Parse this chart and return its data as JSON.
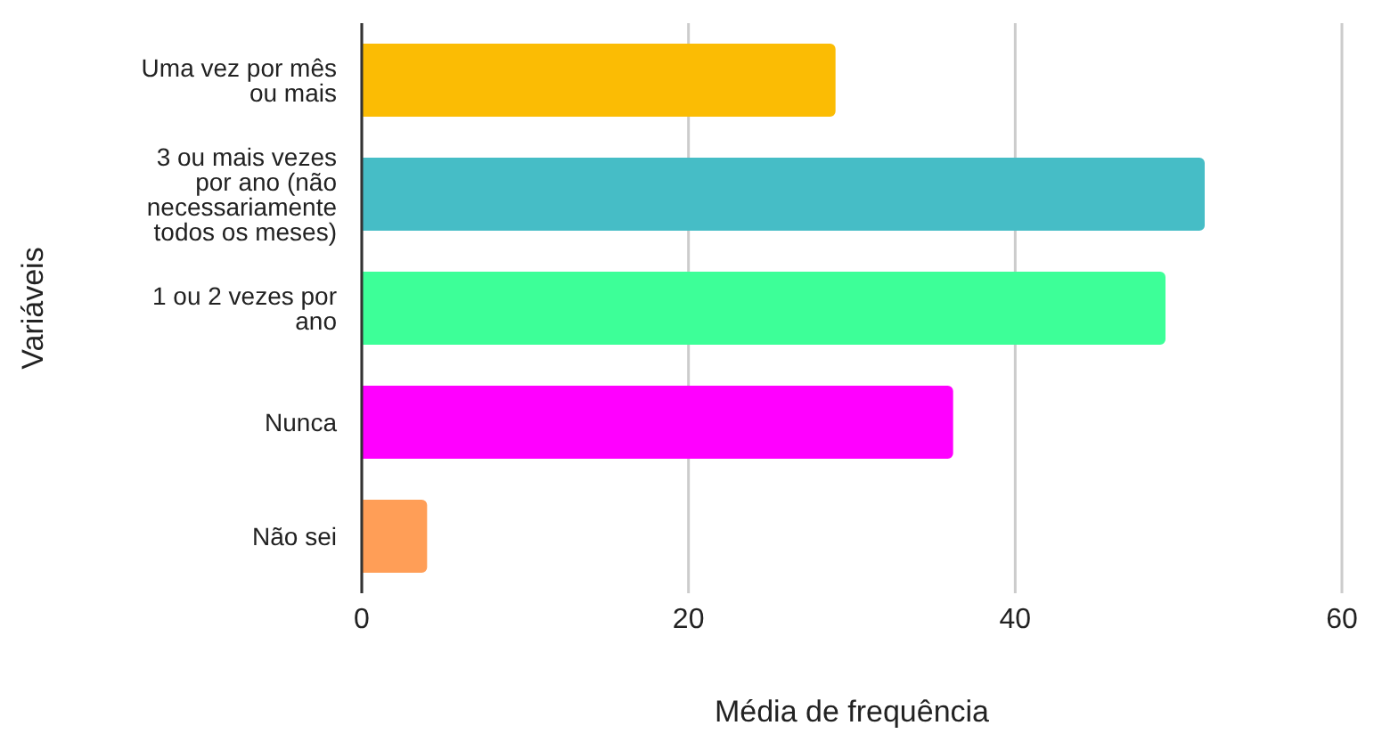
{
  "chart_data": {
    "type": "bar",
    "orientation": "horizontal",
    "xlabel": "Média de frequência",
    "ylabel": "Variáveis",
    "categories": [
      "Uma vez por mês ou mais",
      "3 ou mais vezes por ano (não necessariamente todos os meses)",
      "1 ou 2 vezes por ano",
      "Nunca",
      "Não sei"
    ],
    "values": [
      29.0,
      51.6,
      49.2,
      36.2,
      4.0
    ],
    "colors": [
      "#fbbc04",
      "#46bdc6",
      "#3dff98",
      "#ff00ff",
      "#ff9e57"
    ],
    "xlim": [
      0,
      60
    ],
    "xticks": [
      0,
      20,
      40,
      60
    ],
    "grid": "x"
  }
}
